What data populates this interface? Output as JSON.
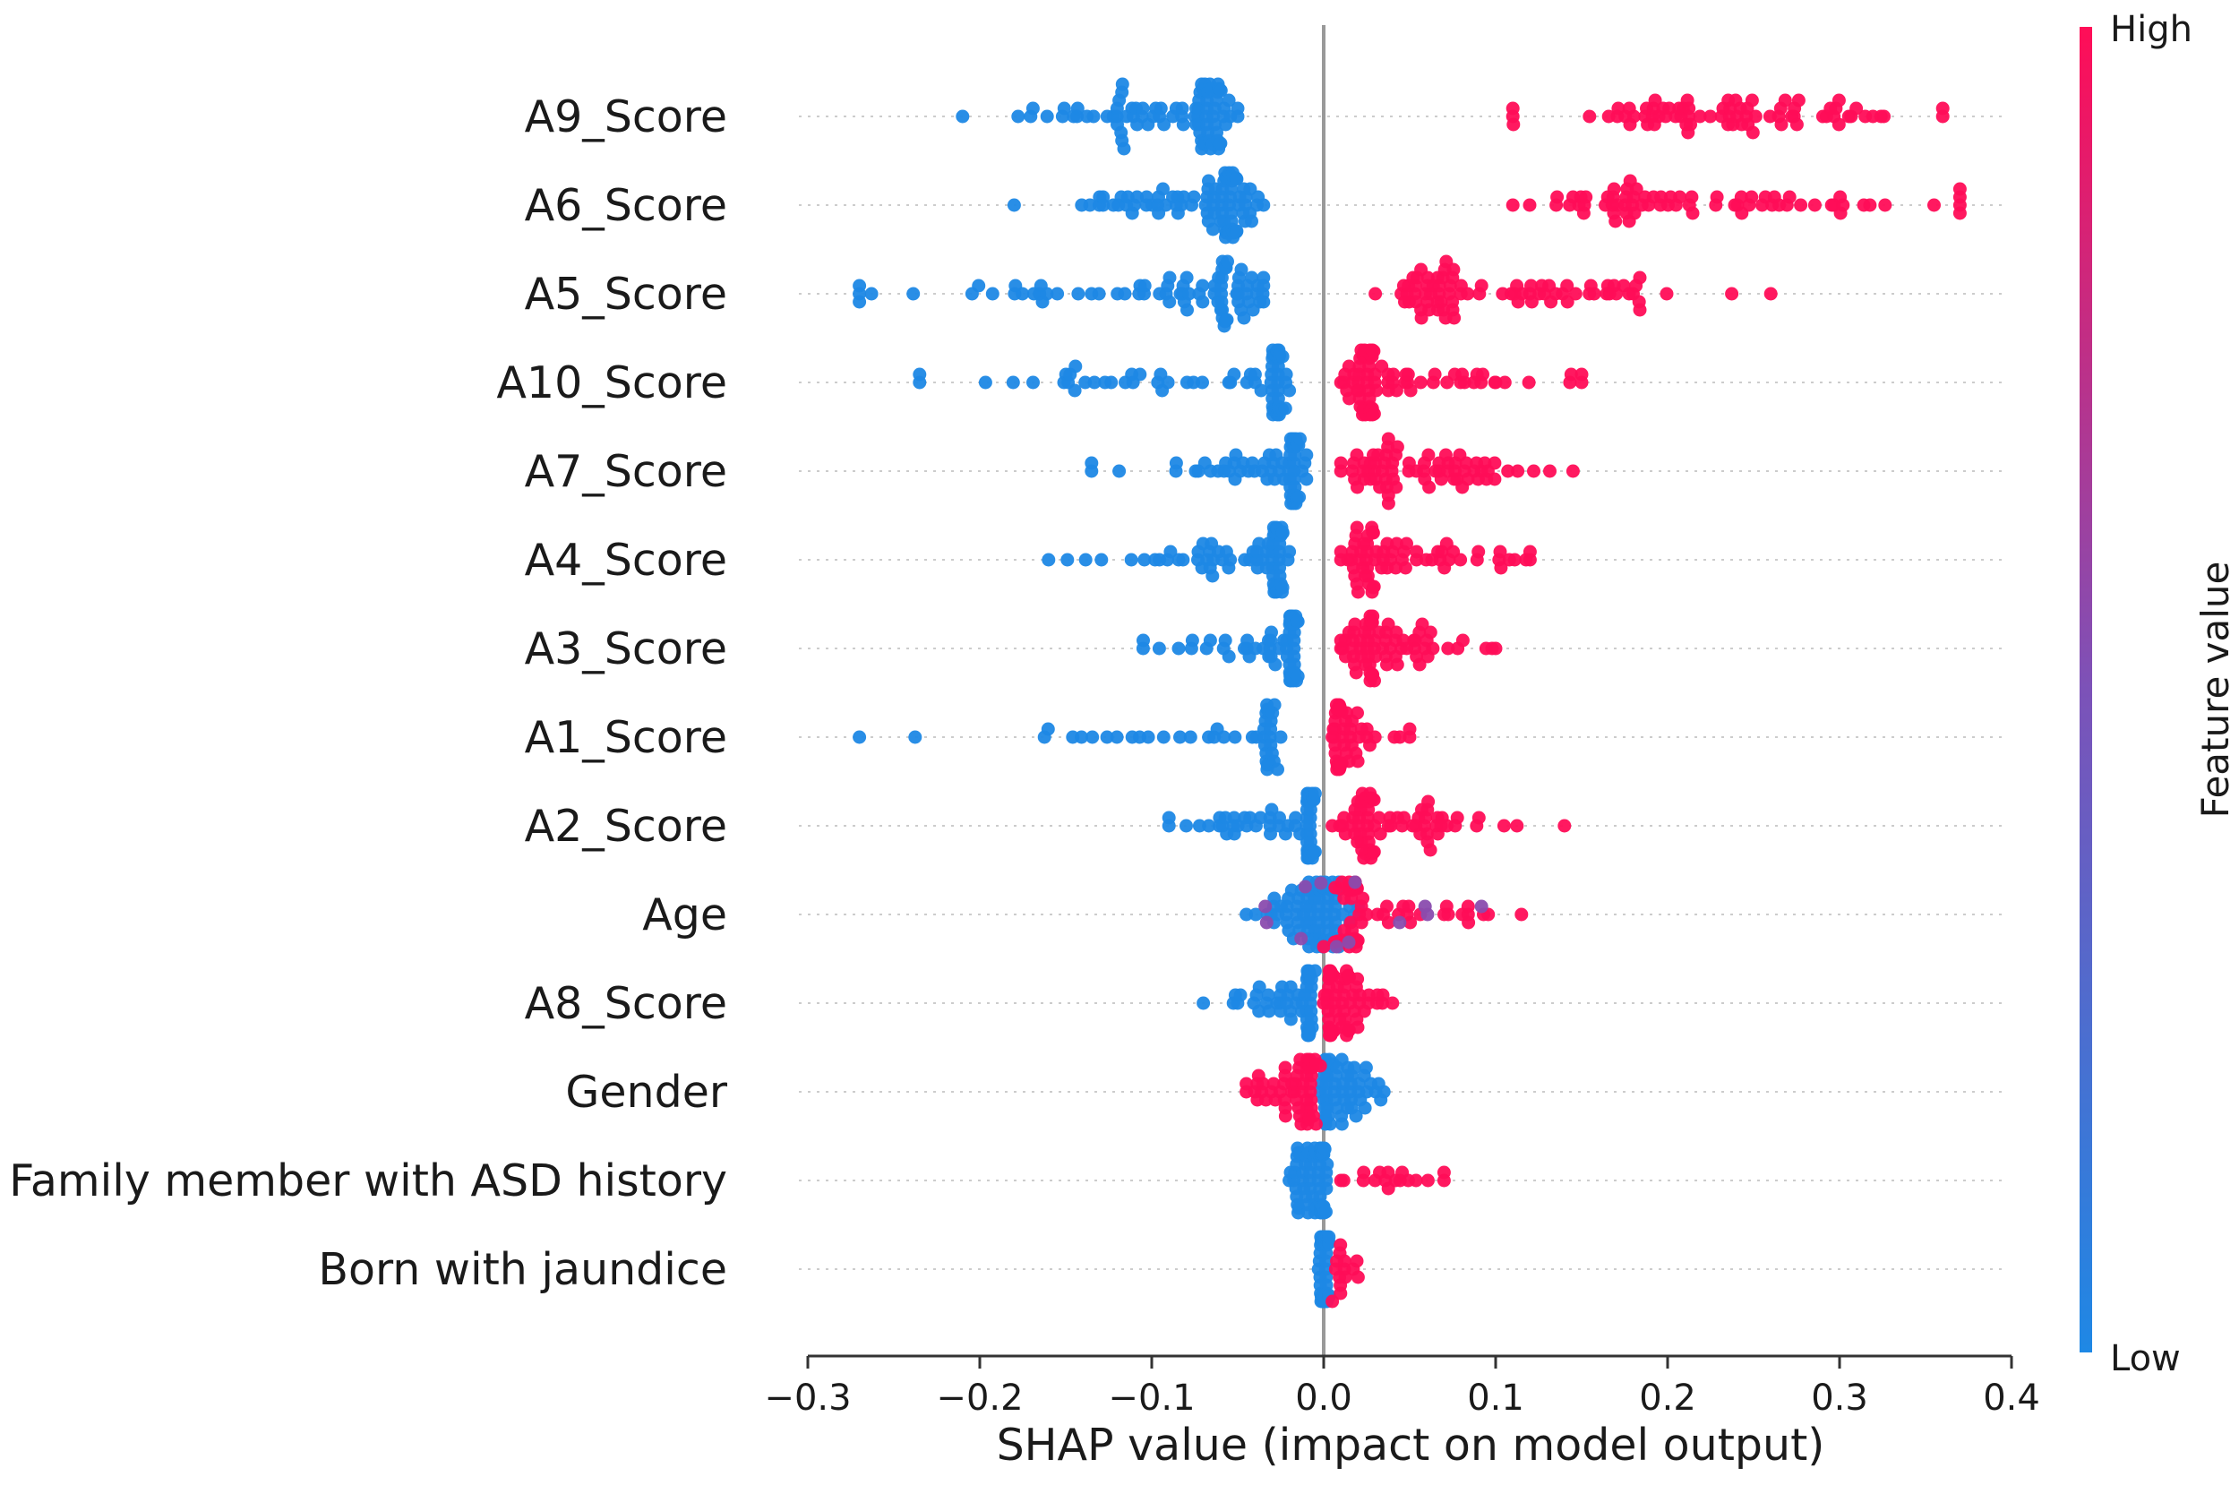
{
  "chart_data": {
    "type": "scatter",
    "subtype": "shap-beeswarm",
    "xlabel": "SHAP value (impact on model output)",
    "xlim": [
      -0.3,
      0.4
    ],
    "xticks": [
      -0.3,
      -0.2,
      -0.1,
      0.0,
      0.1,
      0.2,
      0.3,
      0.4
    ],
    "xtick_labels": [
      "−0.3",
      "−0.2",
      "−0.1",
      "0.0",
      "0.1",
      "0.2",
      "0.3",
      "0.4"
    ],
    "grid": "dotted horizontal guide per feature row",
    "colorbar": {
      "title": "Feature value",
      "high_label": "High",
      "low_label": "Low",
      "high_color": "#ff0d57",
      "low_color": "#1e88e5"
    },
    "features": [
      {
        "name": "A9_Score",
        "low": {
          "min": -0.21,
          "max": -0.05,
          "center": -0.075,
          "count": 90
        },
        "high": {
          "min": 0.11,
          "max": 0.36,
          "center": 0.235,
          "count": 75
        },
        "outliers": [
          -0.205,
          0.36
        ]
      },
      {
        "name": "A6_Score",
        "low": {
          "min": -0.18,
          "max": -0.035,
          "center": -0.06,
          "count": 85
        },
        "high": {
          "min": 0.11,
          "max": 0.37,
          "center": 0.19,
          "count": 70
        },
        "outliers": [
          -0.18,
          0.37
        ]
      },
      {
        "name": "A5_Score",
        "low": {
          "min": -0.27,
          "max": -0.035,
          "center": -0.06,
          "count": 80
        },
        "high": {
          "min": 0.03,
          "max": 0.26,
          "center": 0.075,
          "count": 80
        },
        "outliers": [
          -0.27,
          0.26
        ]
      },
      {
        "name": "A10_Score",
        "low": {
          "min": -0.235,
          "max": -0.02,
          "center": -0.03,
          "count": 70
        },
        "high": {
          "min": 0.01,
          "max": 0.15,
          "center": 0.03,
          "count": 80
        },
        "outliers": [
          -0.235,
          0.15
        ]
      },
      {
        "name": "A7_Score",
        "low": {
          "min": -0.135,
          "max": -0.01,
          "center": -0.02,
          "count": 70
        },
        "high": {
          "min": 0.01,
          "max": 0.145,
          "center": 0.04,
          "count": 70
        },
        "outliers": [
          -0.135,
          0.145
        ]
      },
      {
        "name": "A4_Score",
        "low": {
          "min": -0.16,
          "max": -0.02,
          "center": -0.03,
          "count": 70
        },
        "high": {
          "min": 0.01,
          "max": 0.12,
          "center": 0.03,
          "count": 65
        },
        "outliers": [
          -0.16,
          0.12
        ]
      },
      {
        "name": "A3_Score",
        "low": {
          "min": -0.105,
          "max": -0.015,
          "center": -0.02,
          "count": 70
        },
        "high": {
          "min": 0.01,
          "max": 0.1,
          "center": 0.03,
          "count": 70
        },
        "outliers": [
          -0.105,
          0.1
        ]
      },
      {
        "name": "A1_Score",
        "low": {
          "min": -0.27,
          "max": -0.025,
          "center": -0.035,
          "count": 45
        },
        "high": {
          "min": 0.005,
          "max": 0.05,
          "center": 0.01,
          "count": 55
        },
        "outliers": [
          -0.27,
          0.05
        ]
      },
      {
        "name": "A2_Score",
        "low": {
          "min": -0.09,
          "max": -0.005,
          "center": -0.01,
          "count": 65
        },
        "high": {
          "min": 0.005,
          "max": 0.14,
          "center": 0.03,
          "count": 70
        },
        "outliers": [
          -0.09,
          0.14
        ]
      },
      {
        "name": "Age",
        "low": {
          "min": -0.045,
          "max": 0.02,
          "center": -0.005,
          "count": 80
        },
        "high": {
          "min": 0.0,
          "max": 0.115,
          "center": 0.02,
          "count": 50
        },
        "outliers": [
          -0.045,
          0.115
        ]
      },
      {
        "name": "A8_Score",
        "low": {
          "min": -0.07,
          "max": -0.005,
          "center": -0.01,
          "count": 55
        },
        "high": {
          "min": 0.0,
          "max": 0.04,
          "center": 0.005,
          "count": 65
        },
        "outliers": [
          -0.07,
          0.04
        ]
      },
      {
        "name": "Gender",
        "low": {
          "min": -0.002,
          "max": 0.035,
          "center": 0.003,
          "count": 55
        },
        "high": {
          "min": -0.045,
          "max": -0.002,
          "center": -0.01,
          "count": 55
        },
        "outliers": [
          -0.045,
          0.035
        ]
      },
      {
        "name": "Family member with ASD history",
        "low": {
          "min": -0.02,
          "max": 0.002,
          "center": -0.002,
          "count": 90
        },
        "high": {
          "min": 0.01,
          "max": 0.07,
          "center": 0.03,
          "count": 15
        },
        "outliers": [
          0.07
        ]
      },
      {
        "name": "Born with jaundice",
        "low": {
          "min": -0.003,
          "max": 0.003,
          "center": 0.0,
          "count": 80
        },
        "high": {
          "min": 0.005,
          "max": 0.02,
          "center": 0.01,
          "count": 12
        },
        "outliers": [
          0.02
        ]
      }
    ]
  }
}
